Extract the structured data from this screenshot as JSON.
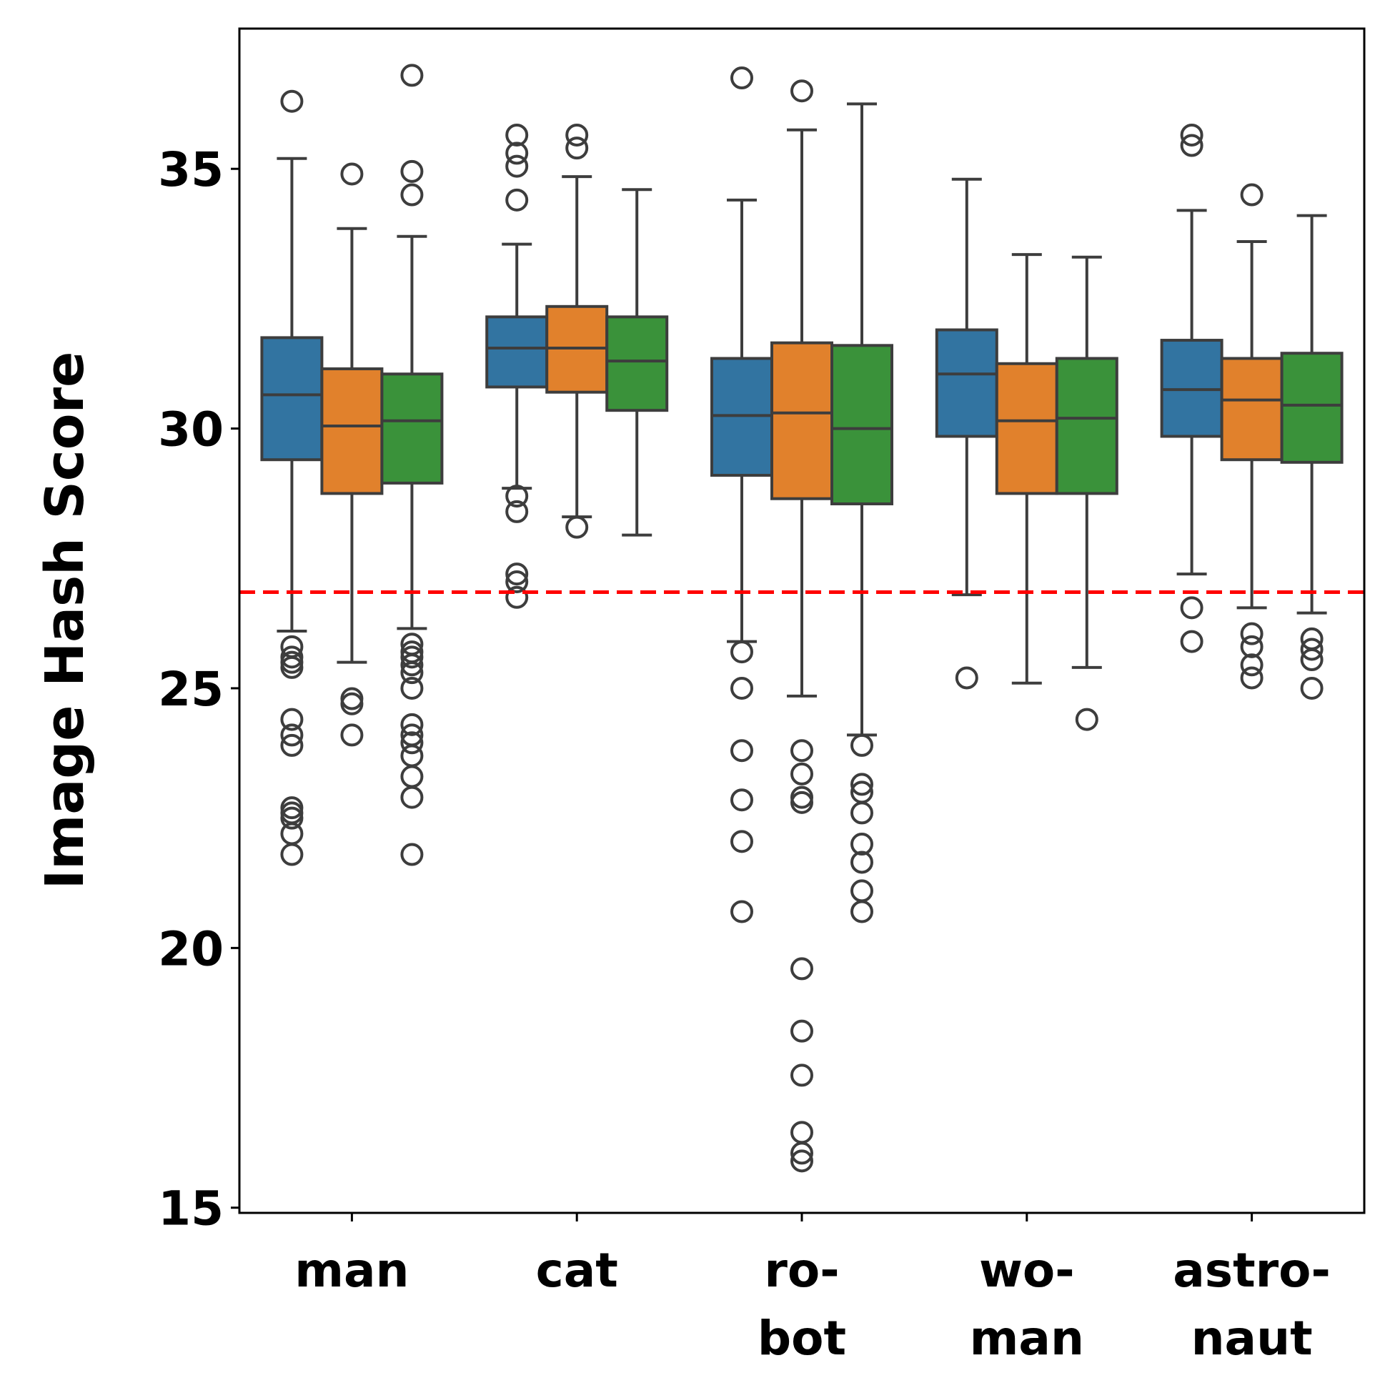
{
  "chart_data": {
    "type": "box",
    "title": "",
    "xlabel": "",
    "ylabel": "Image Hash Score",
    "ylim": [
      14.9,
      37.7
    ],
    "yticks": [
      15,
      20,
      25,
      30,
      35
    ],
    "ytick_labels": [
      "15",
      "20",
      "25",
      "30",
      "35"
    ],
    "grid": false,
    "legend": "none",
    "reference_line": {
      "y": 26.85,
      "color": "#ff0000",
      "style": "dashed"
    },
    "categories": [
      "man",
      "cat",
      "robot",
      "woman",
      "astronaut"
    ],
    "category_label_lines": [
      [
        "man"
      ],
      [
        "cat"
      ],
      [
        "ro-",
        "bot"
      ],
      [
        "wo-",
        "man"
      ],
      [
        "astro-",
        "naut"
      ]
    ],
    "series_colors": [
      "#3274a1",
      "#e1812c",
      "#3a923a"
    ],
    "boxes": [
      [
        {
          "q1": 29.4,
          "median": 30.65,
          "q3": 31.75,
          "whislo": 26.1,
          "whishi": 35.2,
          "fliers": [
            36.3,
            25.8,
            25.6,
            25.5,
            25.4,
            24.4,
            24.1,
            23.9,
            22.7,
            22.6,
            22.5,
            22.2,
            21.8
          ]
        },
        {
          "q1": 28.75,
          "median": 30.05,
          "q3": 31.15,
          "whislo": 25.5,
          "whishi": 33.85,
          "fliers": [
            34.9,
            24.8,
            24.7,
            24.1
          ]
        },
        {
          "q1": 28.95,
          "median": 30.15,
          "q3": 31.05,
          "whislo": 26.15,
          "whishi": 33.7,
          "fliers": [
            36.8,
            34.95,
            34.5,
            25.85,
            25.7,
            25.6,
            25.45,
            25.3,
            25.0,
            24.3,
            24.1,
            23.95,
            23.7,
            23.3,
            22.9,
            21.8
          ]
        }
      ],
      [
        {
          "q1": 30.8,
          "median": 31.55,
          "q3": 32.15,
          "whislo": 28.85,
          "whishi": 33.55,
          "fliers": [
            35.65,
            35.3,
            35.05,
            34.4,
            28.7,
            28.4,
            27.2,
            27.05,
            26.75
          ]
        },
        {
          "q1": 30.7,
          "median": 31.55,
          "q3": 32.35,
          "whislo": 28.3,
          "whishi": 34.85,
          "fliers": [
            35.65,
            35.4,
            28.1
          ]
        },
        {
          "q1": 30.35,
          "median": 31.3,
          "q3": 32.15,
          "whislo": 27.95,
          "whishi": 34.6,
          "fliers": []
        }
      ],
      [
        {
          "q1": 29.1,
          "median": 30.25,
          "q3": 31.35,
          "whislo": 25.9,
          "whishi": 34.4,
          "fliers": [
            36.75,
            25.7,
            25.0,
            23.8,
            22.85,
            22.05,
            20.7
          ]
        },
        {
          "q1": 28.65,
          "median": 30.3,
          "q3": 31.65,
          "whislo": 24.85,
          "whishi": 35.75,
          "fliers": [
            36.5,
            23.8,
            23.35,
            22.9,
            22.8,
            19.6,
            18.4,
            17.55,
            16.45,
            16.05,
            15.9
          ]
        },
        {
          "q1": 28.55,
          "median": 30.0,
          "q3": 31.6,
          "whislo": 24.1,
          "whishi": 36.25,
          "fliers": [
            23.9,
            23.15,
            23.0,
            22.6,
            22.0,
            21.65,
            21.1,
            20.7
          ]
        }
      ],
      [
        {
          "q1": 29.85,
          "median": 31.05,
          "q3": 31.9,
          "whislo": 26.8,
          "whishi": 34.8,
          "fliers": [
            25.2
          ]
        },
        {
          "q1": 28.75,
          "median": 30.15,
          "q3": 31.25,
          "whislo": 25.1,
          "whishi": 33.35,
          "fliers": []
        },
        {
          "q1": 28.75,
          "median": 30.2,
          "q3": 31.35,
          "whislo": 25.4,
          "whishi": 33.3,
          "fliers": [
            24.4
          ]
        }
      ],
      [
        {
          "q1": 29.85,
          "median": 30.75,
          "q3": 31.7,
          "whislo": 27.2,
          "whishi": 34.2,
          "fliers": [
            35.65,
            35.45,
            26.55,
            25.9
          ]
        },
        {
          "q1": 29.4,
          "median": 30.55,
          "q3": 31.35,
          "whislo": 26.55,
          "whishi": 33.6,
          "fliers": [
            34.5,
            26.05,
            25.8,
            25.45,
            25.2
          ]
        },
        {
          "q1": 29.35,
          "median": 30.45,
          "q3": 31.45,
          "whislo": 26.45,
          "whishi": 34.1,
          "fliers": [
            25.95,
            25.75,
            25.55,
            25.0
          ]
        }
      ]
    ]
  }
}
